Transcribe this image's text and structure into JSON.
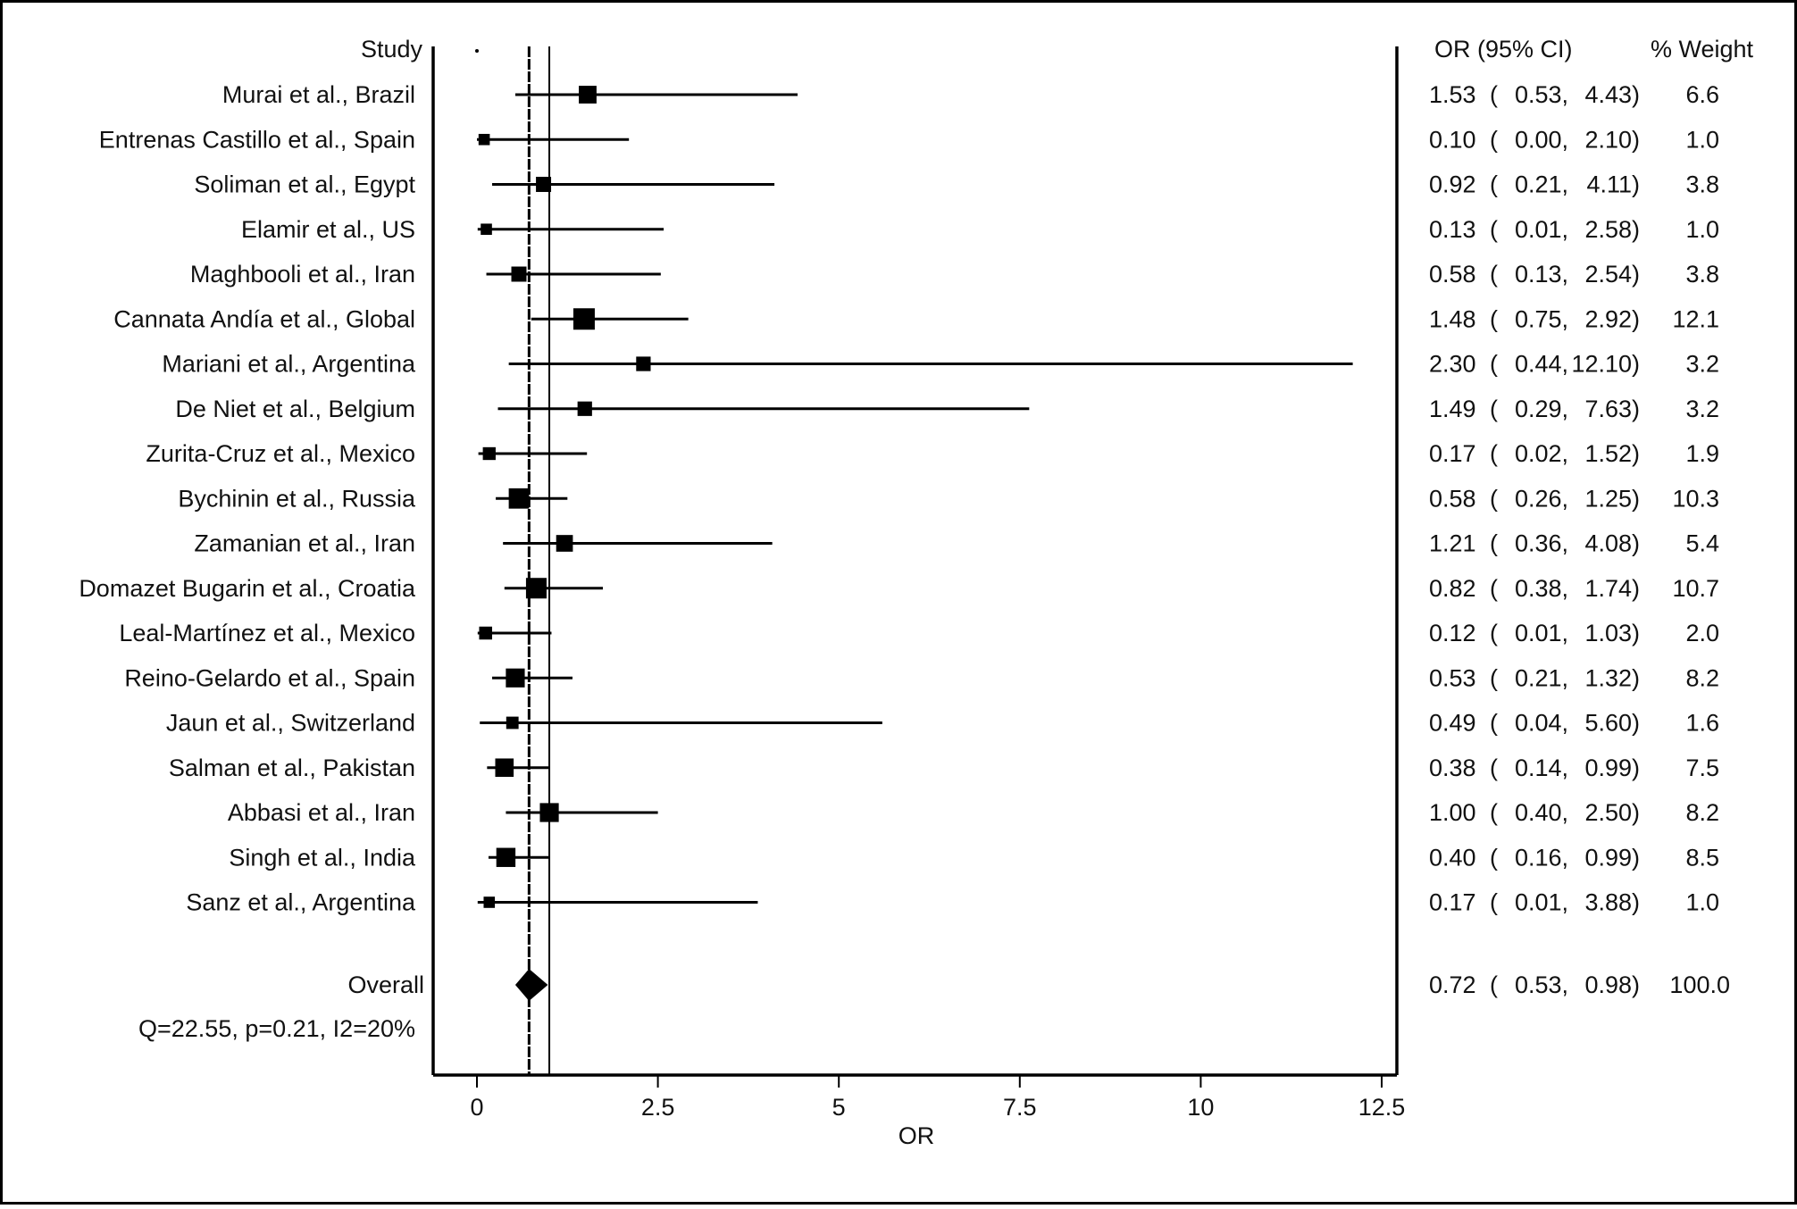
{
  "chart_data": {
    "type": "forest",
    "headers": {
      "study": "Study",
      "or_ci": "OR (95% CI)",
      "weight": "% Weight"
    },
    "xlabel": "OR",
    "xlim": [
      -0.6,
      12.75
    ],
    "xticks": [
      {
        "value": 0,
        "label": "0"
      },
      {
        "value": 2.5,
        "label": "2.5"
      },
      {
        "value": 5,
        "label": "5"
      },
      {
        "value": 7.5,
        "label": "7.5"
      },
      {
        "value": 10,
        "label": "10"
      },
      {
        "value": 12.5,
        "label": "12.5"
      }
    ],
    "null_line": 1,
    "studies": [
      {
        "label": "Murai et al., Brazil",
        "or": 1.53,
        "lo": 0.53,
        "hi": 4.43,
        "or_text": "1.53",
        "lo_text": "0.53,",
        "hi_text": "4.43)",
        "weight": 6.6,
        "weight_text": "6.6"
      },
      {
        "label": "Entrenas Castillo et al., Spain",
        "or": 0.1,
        "lo": 0.0,
        "hi": 2.1,
        "or_text": "0.10",
        "lo_text": "0.00,",
        "hi_text": "2.10)",
        "weight": 1.0,
        "weight_text": "1.0"
      },
      {
        "label": "Soliman et al., Egypt",
        "or": 0.92,
        "lo": 0.21,
        "hi": 4.11,
        "or_text": "0.92",
        "lo_text": "0.21,",
        "hi_text": "4.11)",
        "weight": 3.8,
        "weight_text": "3.8"
      },
      {
        "label": "Elamir et al., US",
        "or": 0.13,
        "lo": 0.01,
        "hi": 2.58,
        "or_text": "0.13",
        "lo_text": "0.01,",
        "hi_text": "2.58)",
        "weight": 1.0,
        "weight_text": "1.0"
      },
      {
        "label": "Maghbooli et al., Iran",
        "or": 0.58,
        "lo": 0.13,
        "hi": 2.54,
        "or_text": "0.58",
        "lo_text": "0.13,",
        "hi_text": "2.54)",
        "weight": 3.8,
        "weight_text": "3.8"
      },
      {
        "label": "Cannata   Andía et al., Global",
        "or": 1.48,
        "lo": 0.75,
        "hi": 2.92,
        "or_text": "1.48",
        "lo_text": "0.75,",
        "hi_text": "2.92)",
        "weight": 12.1,
        "weight_text": "12.1"
      },
      {
        "label": "Mariani et al., Argentina",
        "or": 2.3,
        "lo": 0.44,
        "hi": 12.1,
        "or_text": "2.30",
        "lo_text": "0.44,",
        "hi_text": "12.10)",
        "weight": 3.2,
        "weight_text": "3.2"
      },
      {
        "label": "De Niet et al., Belgium",
        "or": 1.49,
        "lo": 0.29,
        "hi": 7.63,
        "or_text": "1.49",
        "lo_text": "0.29,",
        "hi_text": "7.63)",
        "weight": 3.2,
        "weight_text": "3.2"
      },
      {
        "label": "Zurita-Cruz et al., Mexico",
        "or": 0.17,
        "lo": 0.02,
        "hi": 1.52,
        "or_text": "0.17",
        "lo_text": "0.02,",
        "hi_text": "1.52)",
        "weight": 1.9,
        "weight_text": "1.9"
      },
      {
        "label": "Bychinin et al., Russia",
        "or": 0.58,
        "lo": 0.26,
        "hi": 1.25,
        "or_text": "0.58",
        "lo_text": "0.26,",
        "hi_text": "1.25)",
        "weight": 10.3,
        "weight_text": "10.3"
      },
      {
        "label": "Zamanian et al., Iran",
        "or": 1.21,
        "lo": 0.36,
        "hi": 4.08,
        "or_text": "1.21",
        "lo_text": "0.36,",
        "hi_text": "4.08)",
        "weight": 5.4,
        "weight_text": "5.4"
      },
      {
        "label": "Domazet Bugarin et al., Croatia",
        "or": 0.82,
        "lo": 0.38,
        "hi": 1.74,
        "or_text": "0.82",
        "lo_text": "0.38,",
        "hi_text": "1.74)",
        "weight": 10.7,
        "weight_text": "10.7"
      },
      {
        "label": "Leal-Martínez et al., Mexico",
        "or": 0.12,
        "lo": 0.01,
        "hi": 1.03,
        "or_text": "0.12",
        "lo_text": "0.01,",
        "hi_text": "1.03)",
        "weight": 2.0,
        "weight_text": "2.0"
      },
      {
        "label": "Reino-Gelardo et al., Spain",
        "or": 0.53,
        "lo": 0.21,
        "hi": 1.32,
        "or_text": "0.53",
        "lo_text": "0.21,",
        "hi_text": "1.32)",
        "weight": 8.2,
        "weight_text": "8.2"
      },
      {
        "label": "Jaun et al., Switzerland",
        "or": 0.49,
        "lo": 0.04,
        "hi": 5.6,
        "or_text": "0.49",
        "lo_text": "0.04,",
        "hi_text": "5.60)",
        "weight": 1.6,
        "weight_text": "1.6"
      },
      {
        "label": "Salman et al., Pakistan",
        "or": 0.38,
        "lo": 0.14,
        "hi": 0.99,
        "or_text": "0.38",
        "lo_text": "0.14,",
        "hi_text": "0.99)",
        "weight": 7.5,
        "weight_text": "7.5"
      },
      {
        "label": "Abbasi et al., Iran",
        "or": 1.0,
        "lo": 0.4,
        "hi": 2.5,
        "or_text": "1.00",
        "lo_text": "0.40,",
        "hi_text": "2.50)",
        "weight": 8.2,
        "weight_text": "8.2"
      },
      {
        "label": "Singh et al., India",
        "or": 0.4,
        "lo": 0.16,
        "hi": 0.99,
        "or_text": "0.40",
        "lo_text": "0.16,",
        "hi_text": "0.99)",
        "weight": 8.5,
        "weight_text": "8.5"
      },
      {
        "label": "Sanz et al., Argentina",
        "or": 0.17,
        "lo": 0.01,
        "hi": 3.88,
        "or_text": "0.17",
        "lo_text": "0.01,",
        "hi_text": "3.88)",
        "weight": 1.0,
        "weight_text": "1.0"
      }
    ],
    "overall": {
      "label": "Overall",
      "or": 0.72,
      "lo": 0.53,
      "hi": 0.98,
      "or_text": "0.72",
      "lo_text": "0.53,",
      "hi_text": "0.98)",
      "weight": 100.0,
      "weight_text": "100.0"
    },
    "heterogeneity": "Q=22.55, p=0.21, I2=20%",
    "colors": {
      "marks": "#000000",
      "text": "#111111",
      "background": "#ffffff"
    }
  }
}
